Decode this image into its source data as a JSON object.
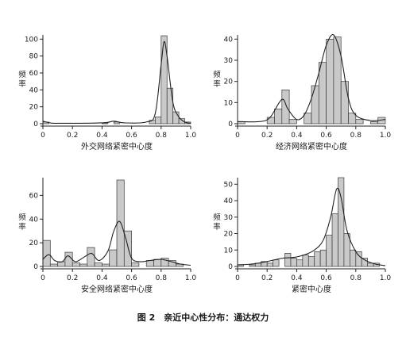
{
  "caption": "图 2　亲近中心性分布：通达权力",
  "chart_data": [
    {
      "type": "bar",
      "xlabel": "外交网络紧密中心度",
      "ylabel": "频率",
      "xlim": [
        0,
        1.0
      ],
      "ylim": [
        0,
        105
      ],
      "xticks": [
        0,
        0.2,
        0.4,
        0.6,
        0.8,
        1.0
      ],
      "xtick_labels": [
        "0",
        "0.2",
        "0.4",
        "0.6",
        "0.8",
        "1.0"
      ],
      "yticks": [
        0,
        20,
        40,
        60,
        80,
        100
      ],
      "bin_width": 0.04,
      "bins": [
        {
          "x": 0.0,
          "value": 2
        },
        {
          "x": 0.4,
          "value": 1
        },
        {
          "x": 0.48,
          "value": 2
        },
        {
          "x": 0.72,
          "value": 4
        },
        {
          "x": 0.76,
          "value": 8
        },
        {
          "x": 0.8,
          "value": 104
        },
        {
          "x": 0.84,
          "value": 42
        },
        {
          "x": 0.88,
          "value": 14
        },
        {
          "x": 0.92,
          "value": 6
        },
        {
          "x": 0.96,
          "value": 2
        }
      ],
      "density_curve": [
        [
          0,
          3
        ],
        [
          0.05,
          1
        ],
        [
          0.1,
          0.5
        ],
        [
          0.4,
          1
        ],
        [
          0.48,
          3
        ],
        [
          0.55,
          1
        ],
        [
          0.7,
          2
        ],
        [
          0.76,
          12
        ],
        [
          0.8,
          70
        ],
        [
          0.82,
          97
        ],
        [
          0.84,
          80
        ],
        [
          0.88,
          25
        ],
        [
          0.92,
          8
        ],
        [
          0.96,
          2
        ],
        [
          1.0,
          0.5
        ]
      ]
    },
    {
      "type": "bar",
      "xlabel": "经济网络紧密中心度",
      "ylabel": "频率",
      "xlim": [
        0,
        1.0
      ],
      "ylim": [
        0,
        42
      ],
      "xticks": [
        0,
        0.2,
        0.4,
        0.6,
        0.8,
        1.0
      ],
      "xtick_labels": [
        "0",
        "0.2",
        "0.4",
        "0.6",
        "0.8",
        "1.0"
      ],
      "yticks": [
        0,
        10,
        20,
        30,
        40
      ],
      "bin_width": 0.05,
      "bins": [
        {
          "x": 0.0,
          "value": 1
        },
        {
          "x": 0.2,
          "value": 3
        },
        {
          "x": 0.25,
          "value": 7
        },
        {
          "x": 0.3,
          "value": 16
        },
        {
          "x": 0.35,
          "value": 2
        },
        {
          "x": 0.45,
          "value": 5
        },
        {
          "x": 0.5,
          "value": 18
        },
        {
          "x": 0.55,
          "value": 29
        },
        {
          "x": 0.6,
          "value": 40
        },
        {
          "x": 0.65,
          "value": 41
        },
        {
          "x": 0.7,
          "value": 20
        },
        {
          "x": 0.75,
          "value": 5
        },
        {
          "x": 0.8,
          "value": 2
        },
        {
          "x": 0.9,
          "value": 1
        },
        {
          "x": 0.95,
          "value": 3
        }
      ],
      "density_curve": [
        [
          0,
          1
        ],
        [
          0.15,
          1
        ],
        [
          0.22,
          3
        ],
        [
          0.3,
          11.5
        ],
        [
          0.34,
          7
        ],
        [
          0.4,
          2
        ],
        [
          0.45,
          4
        ],
        [
          0.5,
          12
        ],
        [
          0.55,
          24
        ],
        [
          0.6,
          37
        ],
        [
          0.65,
          42
        ],
        [
          0.7,
          32
        ],
        [
          0.75,
          12
        ],
        [
          0.8,
          4
        ],
        [
          0.9,
          1.5
        ],
        [
          1.0,
          2
        ]
      ]
    },
    {
      "type": "bar",
      "xlabel": "安全网络紧密中心度",
      "ylabel": "频率",
      "xlim": [
        0,
        1.0
      ],
      "ylim": [
        0,
        75
      ],
      "xticks": [
        0,
        0.2,
        0.4,
        0.6,
        0.8,
        1.0
      ],
      "xtick_labels": [
        "0",
        "0.2",
        "0.4",
        "0.6",
        "0.8",
        "1.0"
      ],
      "yticks": [
        0,
        20,
        40,
        60
      ],
      "bin_width": 0.05,
      "bins": [
        {
          "x": 0.0,
          "value": 22
        },
        {
          "x": 0.05,
          "value": 2
        },
        {
          "x": 0.1,
          "value": 4
        },
        {
          "x": 0.15,
          "value": 12
        },
        {
          "x": 0.2,
          "value": 3
        },
        {
          "x": 0.25,
          "value": 2
        },
        {
          "x": 0.3,
          "value": 16
        },
        {
          "x": 0.35,
          "value": 3
        },
        {
          "x": 0.4,
          "value": 2
        },
        {
          "x": 0.45,
          "value": 14
        },
        {
          "x": 0.5,
          "value": 73
        },
        {
          "x": 0.55,
          "value": 30
        },
        {
          "x": 0.6,
          "value": 3
        },
        {
          "x": 0.7,
          "value": 5
        },
        {
          "x": 0.75,
          "value": 6
        },
        {
          "x": 0.8,
          "value": 7
        },
        {
          "x": 0.85,
          "value": 5
        },
        {
          "x": 0.9,
          "value": 2
        }
      ],
      "density_curve": [
        [
          0,
          6
        ],
        [
          0.04,
          10
        ],
        [
          0.08,
          5
        ],
        [
          0.13,
          4
        ],
        [
          0.17,
          9
        ],
        [
          0.22,
          4
        ],
        [
          0.28,
          8
        ],
        [
          0.33,
          11
        ],
        [
          0.38,
          5
        ],
        [
          0.44,
          13
        ],
        [
          0.48,
          30
        ],
        [
          0.52,
          38
        ],
        [
          0.56,
          24
        ],
        [
          0.6,
          7
        ],
        [
          0.66,
          4
        ],
        [
          0.72,
          5
        ],
        [
          0.8,
          6
        ],
        [
          0.87,
          4
        ],
        [
          0.93,
          2
        ],
        [
          1.0,
          1
        ]
      ]
    },
    {
      "type": "bar",
      "xlabel": "紧密中心度",
      "ylabel": "频率",
      "xlim": [
        0,
        1.0
      ],
      "ylim": [
        0,
        54
      ],
      "xticks": [
        0,
        0.2,
        0.4,
        0.6,
        0.8,
        1.0
      ],
      "xtick_labels": [
        "0",
        "0.2",
        "0.4",
        "0.6",
        "0.8",
        "1.0"
      ],
      "yticks": [
        0,
        10,
        20,
        30,
        40,
        50
      ],
      "bin_width": 0.04,
      "bins": [
        {
          "x": 0.0,
          "value": 1
        },
        {
          "x": 0.08,
          "value": 1
        },
        {
          "x": 0.12,
          "value": 2
        },
        {
          "x": 0.16,
          "value": 3
        },
        {
          "x": 0.2,
          "value": 2
        },
        {
          "x": 0.24,
          "value": 4
        },
        {
          "x": 0.32,
          "value": 8
        },
        {
          "x": 0.36,
          "value": 5
        },
        {
          "x": 0.4,
          "value": 4
        },
        {
          "x": 0.44,
          "value": 7
        },
        {
          "x": 0.48,
          "value": 6
        },
        {
          "x": 0.52,
          "value": 9
        },
        {
          "x": 0.56,
          "value": 10
        },
        {
          "x": 0.6,
          "value": 19
        },
        {
          "x": 0.64,
          "value": 32
        },
        {
          "x": 0.68,
          "value": 54
        },
        {
          "x": 0.72,
          "value": 20
        },
        {
          "x": 0.76,
          "value": 10
        },
        {
          "x": 0.8,
          "value": 9
        },
        {
          "x": 0.84,
          "value": 5
        },
        {
          "x": 0.88,
          "value": 2
        },
        {
          "x": 0.92,
          "value": 2
        }
      ],
      "density_curve": [
        [
          0,
          1
        ],
        [
          0.1,
          1.5
        ],
        [
          0.2,
          3
        ],
        [
          0.3,
          5
        ],
        [
          0.38,
          5.5
        ],
        [
          0.45,
          7
        ],
        [
          0.52,
          10
        ],
        [
          0.58,
          16
        ],
        [
          0.63,
          30
        ],
        [
          0.67,
          47
        ],
        [
          0.7,
          42
        ],
        [
          0.74,
          22
        ],
        [
          0.8,
          9
        ],
        [
          0.86,
          4
        ],
        [
          0.93,
          1.5
        ],
        [
          1.0,
          0.5
        ]
      ]
    }
  ]
}
